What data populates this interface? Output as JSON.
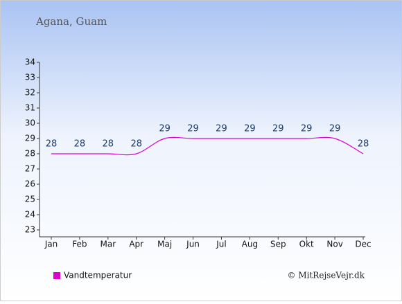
{
  "chart_data": {
    "type": "line",
    "title": "Agana, Guam",
    "categories": [
      "Jan",
      "Feb",
      "Mar",
      "Apr",
      "Maj",
      "Jun",
      "Jul",
      "Aug",
      "Sep",
      "Okt",
      "Nov",
      "Dec"
    ],
    "series": [
      {
        "name": "Vandtemperatur",
        "color": "#dd00cc",
        "values": [
          28,
          28,
          28,
          28,
          29,
          29,
          29,
          29,
          29,
          29,
          29,
          28
        ]
      }
    ],
    "ylim": [
      23,
      34
    ],
    "yticks": [
      23,
      24,
      25,
      26,
      27,
      28,
      29,
      30,
      31,
      32,
      33,
      34
    ],
    "data_labels": true,
    "legend": "bottom-left",
    "credit": "© MitRejseVejr.dk"
  }
}
